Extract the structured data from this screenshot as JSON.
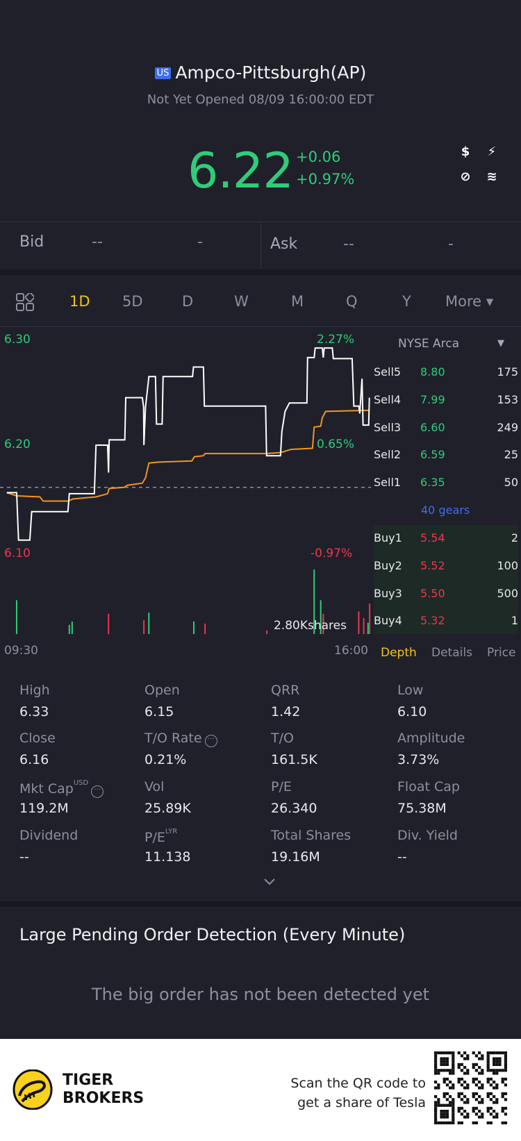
{
  "header": {
    "market_badge": "US",
    "title": "Ampco-Pittsburgh(AP)",
    "status": "Not Yet Opened 08/09 16:00:00 EDT"
  },
  "quote": {
    "price": "6.22",
    "change": "+0.06",
    "change_pct": "+0.97%",
    "up_color": "#2fcc7a",
    "down_color": "#e8384f"
  },
  "badges": [
    {
      "icon": "dollar-icon",
      "glyph": "$",
      "color": "#f5a623"
    },
    {
      "icon": "lightning-icon",
      "glyph": "⚡",
      "color": "#2f8cf0"
    },
    {
      "icon": "no-short-icon",
      "glyph": "⊘",
      "color": "#f07a2a"
    },
    {
      "icon": "layers-icon",
      "glyph": "≋",
      "color": "#d99a5a"
    }
  ],
  "bidask": {
    "bid_label": "Bid",
    "bid_price": "--",
    "bid_size": "-",
    "ask_label": "Ask",
    "ask_price": "--",
    "ask_size": "-"
  },
  "tabs": [
    {
      "label": "1D"
    },
    {
      "label": "5D"
    },
    {
      "label": "D"
    },
    {
      "label": "W"
    },
    {
      "label": "M"
    },
    {
      "label": "Q"
    },
    {
      "label": "Y"
    },
    {
      "label": "More ▾"
    }
  ],
  "chart_data": {
    "type": "line",
    "y_labels": {
      "top": "6.30",
      "mid": "6.20",
      "bottom": "6.10"
    },
    "pct_labels": {
      "top": "2.27%",
      "mid": "0.65%",
      "bottom": "-0.97%"
    },
    "prev_close": 6.16,
    "ylim": [
      6.1,
      6.3
    ],
    "x_labels": {
      "start": "09:30",
      "end": "16:00"
    },
    "volume_label": "2.80Kshares",
    "price_series": [
      [
        3.5,
        6.155
      ],
      [
        14,
        6.155
      ],
      [
        16,
        6.11
      ],
      [
        28,
        6.11
      ],
      [
        30,
        6.137
      ],
      [
        68.5,
        6.137
      ],
      [
        70,
        6.154
      ],
      [
        96.6,
        6.154
      ],
      [
        98.4,
        6.2
      ],
      [
        110.7,
        6.2
      ],
      [
        111.7,
        6.174
      ],
      [
        112.4,
        6.205
      ],
      [
        129,
        6.205
      ],
      [
        130,
        6.245
      ],
      [
        147.6,
        6.245
      ],
      [
        149,
        6.236
      ],
      [
        149.3,
        6.2
      ],
      [
        151,
        6.236
      ],
      [
        154.6,
        6.265
      ],
      [
        161.6,
        6.265
      ],
      [
        162.7,
        6.22
      ],
      [
        168.7,
        6.22
      ],
      [
        169.7,
        6.265
      ],
      [
        201,
        6.265
      ],
      [
        202,
        6.274
      ],
      [
        212.6,
        6.274
      ],
      [
        213.6,
        6.237
      ],
      [
        278.7,
        6.237
      ],
      [
        279.7,
        6.19
      ],
      [
        294.5,
        6.19
      ],
      [
        296,
        6.213
      ],
      [
        299.4,
        6.232
      ],
      [
        304,
        6.24
      ],
      [
        322.6,
        6.24
      ],
      [
        323.3,
        6.283
      ],
      [
        330.3,
        6.283
      ],
      [
        331.4,
        6.292
      ],
      [
        339,
        6.292
      ],
      [
        340,
        6.283
      ],
      [
        341,
        6.292
      ],
      [
        349.6,
        6.292
      ],
      [
        350.7,
        6.282
      ],
      [
        370.7,
        6.282
      ],
      [
        372.5,
        6.237
      ],
      [
        377.7,
        6.237
      ],
      [
        378.8,
        6.23
      ],
      [
        381.2,
        6.263
      ],
      [
        382.3,
        6.219
      ],
      [
        388.3,
        6.219
      ],
      [
        389,
        6.245
      ]
    ],
    "avg_series": [
      [
        3.5,
        6.155
      ],
      [
        14,
        6.152
      ],
      [
        38.7,
        6.151
      ],
      [
        42.2,
        6.147
      ],
      [
        68.5,
        6.147
      ],
      [
        73.8,
        6.149
      ],
      [
        98.4,
        6.151
      ],
      [
        110.7,
        6.154
      ],
      [
        112.4,
        6.159
      ],
      [
        128.2,
        6.16
      ],
      [
        131.8,
        6.162
      ],
      [
        147.6,
        6.164
      ],
      [
        151,
        6.169
      ],
      [
        154.6,
        6.183
      ],
      [
        165,
        6.184
      ],
      [
        200.3,
        6.185
      ],
      [
        203,
        6.189
      ],
      [
        212.6,
        6.19
      ],
      [
        214.3,
        6.192
      ],
      [
        279.3,
        6.192
      ],
      [
        295,
        6.193
      ],
      [
        305.7,
        6.196
      ],
      [
        328.5,
        6.197
      ],
      [
        330.3,
        6.217
      ],
      [
        337.3,
        6.218
      ],
      [
        339,
        6.226
      ],
      [
        342.6,
        6.232
      ],
      [
        388.3,
        6.233
      ]
    ],
    "volume": [
      [
        14,
        1.47,
        "up"
      ],
      [
        70,
        0.4,
        "up"
      ],
      [
        73,
        0.54,
        "up"
      ],
      [
        111.7,
        0.88,
        "down"
      ],
      [
        149.3,
        0.6,
        "down"
      ],
      [
        154.6,
        0.93,
        "up"
      ],
      [
        202.4,
        0.55,
        "up"
      ],
      [
        214.3,
        0.45,
        "down"
      ],
      [
        280,
        0.15,
        "down"
      ],
      [
        330.3,
        2.8,
        "up"
      ],
      [
        337.3,
        1.47,
        "up"
      ],
      [
        340,
        0.88,
        "down"
      ],
      [
        377.7,
        0.98,
        "down"
      ],
      [
        383,
        0.69,
        "down"
      ],
      [
        387.6,
        0.49,
        "up"
      ],
      [
        389.3,
        1.32,
        "down"
      ]
    ]
  },
  "depth": {
    "exchange": "NYSE Arca",
    "sell": [
      {
        "label": "Sell5",
        "price": "8.80",
        "qty": "175"
      },
      {
        "label": "Sell4",
        "price": "7.99",
        "qty": "153"
      },
      {
        "label": "Sell3",
        "price": "6.60",
        "qty": "249"
      },
      {
        "label": "Sell2",
        "price": "6.59",
        "qty": "25"
      },
      {
        "label": "Sell1",
        "price": "6.35",
        "qty": "50"
      }
    ],
    "gears": "40 gears",
    "buy": [
      {
        "label": "Buy1",
        "price": "5.54",
        "qty": "2"
      },
      {
        "label": "Buy2",
        "price": "5.52",
        "qty": "100"
      },
      {
        "label": "Buy3",
        "price": "5.50",
        "qty": "500"
      },
      {
        "label": "Buy4",
        "price": "5.32",
        "qty": "1"
      }
    ],
    "tabs": [
      "Depth",
      "Details",
      "Price"
    ]
  },
  "stats": [
    {
      "label": "High",
      "value": "6.33"
    },
    {
      "label": "Open",
      "value": "6.15"
    },
    {
      "label": "QRR",
      "value": "1.42"
    },
    {
      "label": "Low",
      "value": "6.10"
    },
    {
      "label": "Close",
      "value": "6.16"
    },
    {
      "label": "T/O Rate",
      "value": "0.21%"
    },
    {
      "label": "T/O",
      "value": "161.5K"
    },
    {
      "label": "Amplitude",
      "value": "3.73%"
    },
    {
      "label": "Mkt Cap",
      "sup": "USD",
      "value": "119.2M"
    },
    {
      "label": "Vol",
      "value": "25.89K"
    },
    {
      "label": "P/E",
      "value": "26.340"
    },
    {
      "label": "Float Cap",
      "value": "75.38M"
    },
    {
      "label": "Dividend",
      "value": "--"
    },
    {
      "label": "P/E",
      "sup": "LYR",
      "value": "11.138"
    },
    {
      "label": "Total Shares",
      "value": "19.16M"
    },
    {
      "label": "Div. Yield",
      "value": "--"
    }
  ],
  "large_order": {
    "title": "Large Pending Order Detection (Every Minute)",
    "message": "The big order has not been detected yet"
  },
  "footer": {
    "brand_line1": "TIGER",
    "brand_line2": "BROKERS",
    "promo_line1": "Scan the QR code to",
    "promo_line2": "get a share of Tesla"
  }
}
